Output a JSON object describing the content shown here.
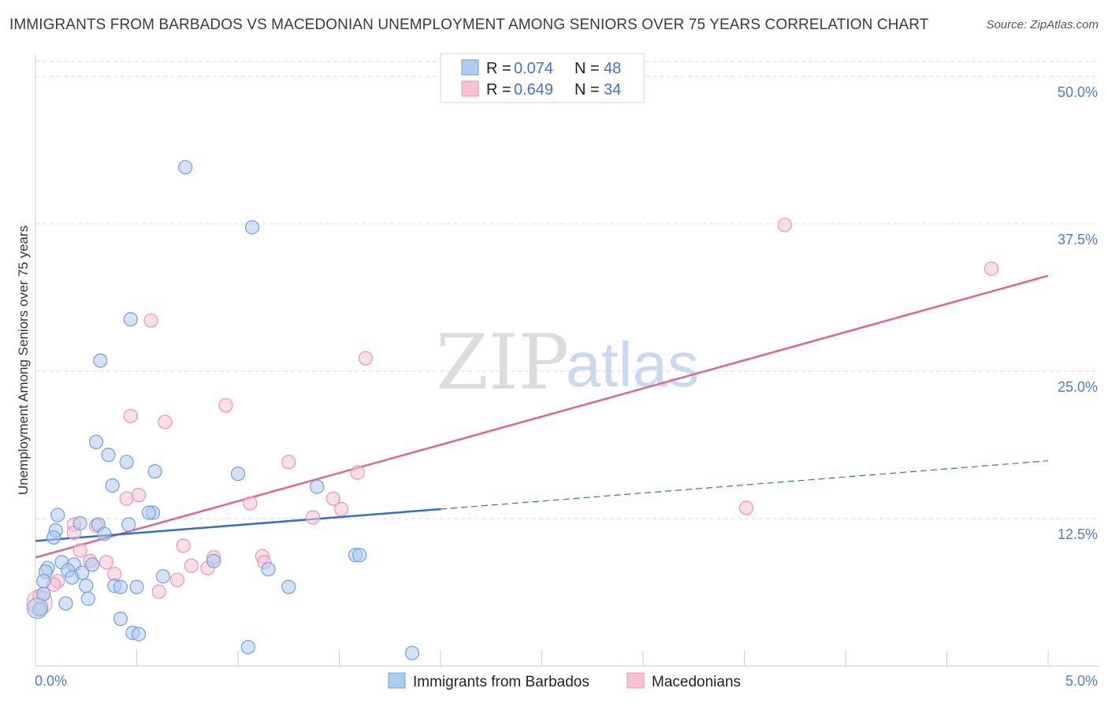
{
  "title": "IMMIGRANTS FROM BARBADOS VS MACEDONIAN UNEMPLOYMENT AMONG SENIORS OVER 75 YEARS CORRELATION CHART",
  "source": "Source: ZipAtlas.com",
  "watermark": {
    "zip": "ZIP",
    "atlas": "atlas"
  },
  "colors": {
    "blue_fill": "#aecbf0",
    "blue_stroke": "#6f9fe0",
    "blue_line": "#2f6fd0",
    "pink_fill": "#f7c3d3",
    "pink_stroke": "#ee93b1",
    "pink_line": "#e06593",
    "grid": "#d9d9d9",
    "tick_text": "#4a7cc9"
  },
  "legend": {
    "rows": [
      {
        "r_label": "R = ",
        "r_value": "0.074",
        "n_label": "N = ",
        "n_value": "48"
      },
      {
        "r_label": "R = ",
        "r_value": "0.649",
        "n_label": "N = ",
        "n_value": "34"
      }
    ]
  },
  "chart_data": {
    "type": "scatter",
    "title": "IMMIGRANTS FROM BARBADOS VS MACEDONIAN UNEMPLOYMENT AMONG SENIORS OVER 75 YEARS CORRELATION CHART",
    "xlabel": "",
    "ylabel": "Unemployment Among Seniors over 75 years",
    "xlim": [
      0,
      5
    ],
    "ylim": [
      0,
      50
    ],
    "x_tick_labels": [
      {
        "value": 0,
        "label": "0.0%"
      },
      {
        "value": 5,
        "label": "5.0%"
      }
    ],
    "y_tick_labels": [
      {
        "value": 12.5,
        "label": "12.5%"
      },
      {
        "value": 25,
        "label": "25.0%"
      },
      {
        "value": 37.5,
        "label": "37.5%"
      },
      {
        "value": 50,
        "label": "50.0%"
      }
    ],
    "grid": true,
    "series": [
      {
        "name": "Immigrants from Barbados",
        "color": "blue",
        "points": [
          [
            0.74,
            42.3
          ],
          [
            1.07,
            37.2
          ],
          [
            0.47,
            29.4
          ],
          [
            0.32,
            25.9
          ],
          [
            0.3,
            19.0
          ],
          [
            0.36,
            17.9
          ],
          [
            0.45,
            17.3
          ],
          [
            0.59,
            16.5
          ],
          [
            1.0,
            16.3
          ],
          [
            0.38,
            15.3
          ],
          [
            1.39,
            15.2
          ],
          [
            0.58,
            13.0
          ],
          [
            0.11,
            12.8
          ],
          [
            0.22,
            12.1
          ],
          [
            0.31,
            12.0
          ],
          [
            0.46,
            12.0
          ],
          [
            0.1,
            11.5
          ],
          [
            0.34,
            11.2
          ],
          [
            0.09,
            10.9
          ],
          [
            1.58,
            9.4
          ],
          [
            1.6,
            9.4
          ],
          [
            0.88,
            8.9
          ],
          [
            0.13,
            8.8
          ],
          [
            0.19,
            8.6
          ],
          [
            0.28,
            8.6
          ],
          [
            0.06,
            8.3
          ],
          [
            0.16,
            8.1
          ],
          [
            0.05,
            8.0
          ],
          [
            0.23,
            7.9
          ],
          [
            1.15,
            8.2
          ],
          [
            0.18,
            7.5
          ],
          [
            0.63,
            7.6
          ],
          [
            0.04,
            7.2
          ],
          [
            0.25,
            6.8
          ],
          [
            0.39,
            6.8
          ],
          [
            0.42,
            6.7
          ],
          [
            0.5,
            6.7
          ],
          [
            1.25,
            6.7
          ],
          [
            0.04,
            6.1
          ],
          [
            0.26,
            5.7
          ],
          [
            0.15,
            5.3
          ],
          [
            0.02,
            4.8
          ],
          [
            0.42,
            4.0
          ],
          [
            0.48,
            2.8
          ],
          [
            0.51,
            2.7
          ],
          [
            1.05,
            1.6
          ],
          [
            1.86,
            1.1
          ],
          [
            0.56,
            13.0
          ]
        ],
        "trend": {
          "x": [
            0,
            2.0
          ],
          "y": [
            10.6,
            13.3
          ]
        },
        "trend_dashed": {
          "x": [
            2.0,
            5.0
          ],
          "y": [
            13.3,
            17.4
          ]
        }
      },
      {
        "name": "Macedonians",
        "color": "pink",
        "points": [
          [
            3.7,
            37.4
          ],
          [
            4.72,
            33.7
          ],
          [
            0.57,
            29.3
          ],
          [
            1.63,
            26.1
          ],
          [
            0.94,
            22.1
          ],
          [
            0.47,
            21.2
          ],
          [
            0.64,
            20.7
          ],
          [
            1.25,
            17.3
          ],
          [
            1.59,
            16.4
          ],
          [
            0.51,
            14.5
          ],
          [
            0.45,
            14.2
          ],
          [
            1.06,
            13.8
          ],
          [
            1.47,
            14.2
          ],
          [
            1.51,
            13.3
          ],
          [
            3.51,
            13.4
          ],
          [
            1.37,
            12.6
          ],
          [
            0.19,
            12.0
          ],
          [
            0.3,
            11.9
          ],
          [
            0.19,
            11.3
          ],
          [
            0.22,
            9.8
          ],
          [
            0.73,
            10.2
          ],
          [
            0.88,
            9.2
          ],
          [
            1.12,
            9.3
          ],
          [
            1.13,
            8.8
          ],
          [
            0.35,
            8.8
          ],
          [
            0.27,
            8.9
          ],
          [
            0.77,
            8.5
          ],
          [
            0.85,
            8.3
          ],
          [
            0.39,
            7.8
          ],
          [
            0.7,
            7.3
          ],
          [
            0.11,
            7.2
          ],
          [
            0.09,
            6.9
          ],
          [
            0.61,
            6.3
          ],
          [
            0.02,
            5.9
          ]
        ],
        "trend": {
          "x": [
            0,
            5.0
          ],
          "y": [
            9.2,
            33.1
          ]
        }
      }
    ]
  },
  "bottom_legend": {
    "items": [
      {
        "label": "Immigrants from Barbados"
      },
      {
        "label": "Macedonians"
      }
    ]
  }
}
